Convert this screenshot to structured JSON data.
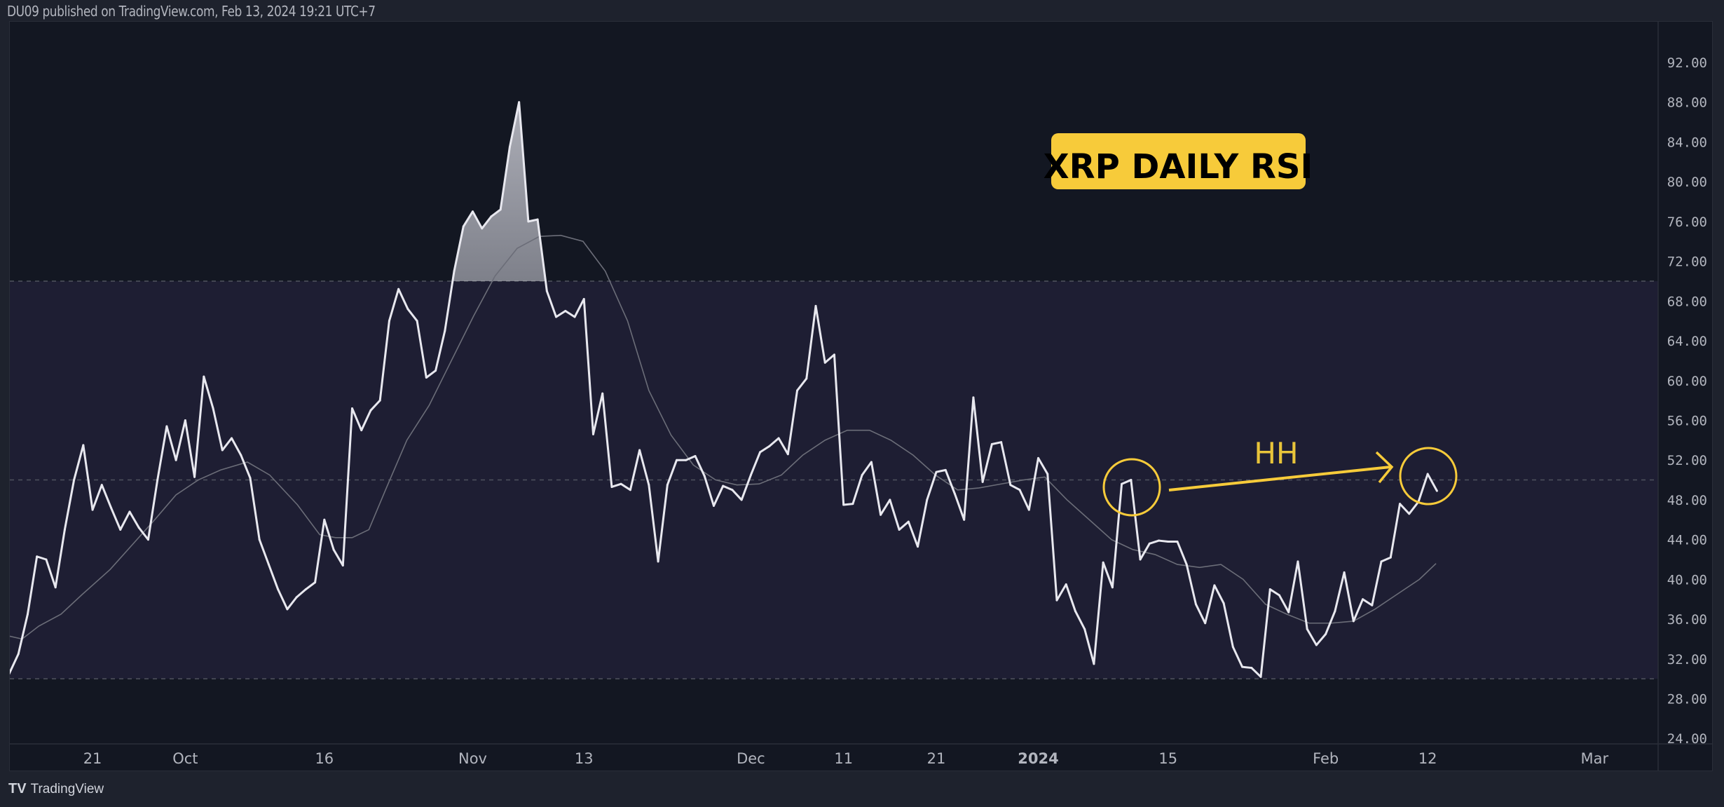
{
  "header": {
    "published": "DU09 published on TradingView.com, Feb 13, 2024 19:21 UTC+7"
  },
  "footer": {
    "logo_mark": "TV",
    "brand": "TradingView"
  },
  "colors": {
    "background": "#131722",
    "band": "#1e1e33",
    "rsi": "#e8e8ef",
    "ma": "#6b6d78",
    "annotation": "#f7cb3a",
    "grid_dash": "#50535e"
  },
  "chart_data": {
    "type": "line",
    "title": "XRP DAILY RSI",
    "start_date": "Sep 12, 2023",
    "x_unit": "day index",
    "ylim": [
      24,
      94
    ],
    "y_ticks": [
      "92.00",
      "88.00",
      "84.00",
      "80.00",
      "76.00",
      "72.00",
      "68.00",
      "64.00",
      "60.00",
      "56.00",
      "52.00",
      "48.00",
      "44.00",
      "40.00",
      "36.00",
      "32.00",
      "28.00",
      "24.00"
    ],
    "x_ticks": [
      {
        "label": "21",
        "day": 9
      },
      {
        "label": "Oct",
        "day": 19
      },
      {
        "label": "16",
        "day": 34
      },
      {
        "label": "Nov",
        "day": 50
      },
      {
        "label": "13",
        "day": 62
      },
      {
        "label": "Dec",
        "day": 80
      },
      {
        "label": "11",
        "day": 90
      },
      {
        "label": "21",
        "day": 100
      },
      {
        "label": "2024",
        "day": 111
      },
      {
        "label": "15",
        "day": 125
      },
      {
        "label": "Feb",
        "day": 142
      },
      {
        "label": "12",
        "day": 153
      },
      {
        "label": "Mar",
        "day": 171
      }
    ],
    "levels": {
      "upper": 70,
      "middle": 50,
      "lower": 30
    },
    "series": [
      {
        "name": "RSI",
        "values": [
          30.5,
          32.5,
          36.5,
          42.3,
          42.0,
          39.2,
          45,
          50,
          53.5,
          47,
          49.5,
          47.2,
          45,
          46.8,
          45.2,
          44,
          50,
          55.4,
          52,
          56,
          50.3,
          60.4,
          57.2,
          53,
          54.2,
          52.5,
          50.2,
          44,
          41.5,
          39,
          37,
          38.2,
          39,
          39.7,
          46,
          43,
          41.4,
          57.2,
          55,
          57,
          58,
          66,
          69.2,
          67.2,
          66,
          60.3,
          61,
          65,
          71,
          75.5,
          77,
          75.3,
          76.5,
          77.2,
          83.5,
          88,
          76,
          76.2,
          69,
          66.4,
          67,
          66.4,
          68.2,
          54.6,
          58.7,
          49.3,
          49.6,
          49,
          53,
          49.5,
          41.8,
          49.5,
          52,
          52,
          52.4,
          50.4,
          47.4,
          49.4,
          49,
          48,
          50.5,
          52.8,
          53.4,
          54.2,
          52.6,
          59,
          60.2,
          67.5,
          61.8,
          62.6,
          47.5,
          47.6,
          50.5,
          51.8,
          46.5,
          48,
          45,
          45.8,
          43.3,
          48,
          50.8,
          51,
          48.6,
          46,
          58.3,
          49.8,
          53.6,
          53.8,
          49.5,
          49,
          47,
          52.2,
          50.6,
          37.9,
          39.5,
          36.8,
          35,
          31.5,
          41.7,
          39.2,
          49.6,
          50,
          42,
          43.6,
          43.9,
          43.8,
          43.8,
          41.5,
          37.5,
          35.6,
          39.4,
          37.6,
          33.2,
          31.2,
          31.1,
          30.2,
          39,
          38.4,
          36.7,
          41.8,
          35,
          33.4,
          34.5,
          36.8,
          40.7,
          35.8,
          38,
          37.4,
          41.8,
          42.2,
          47.6,
          46.6,
          47.8,
          50.6,
          48.9
        ]
      },
      {
        "name": "RSI-based MA",
        "points": [
          [
            0,
            34.3
          ],
          [
            1.4,
            34
          ],
          [
            3.2,
            35.3
          ],
          [
            5.6,
            36.5
          ],
          [
            7.9,
            38.5
          ],
          [
            10.9,
            41
          ],
          [
            13.3,
            43.5
          ],
          [
            15.7,
            46
          ],
          [
            18,
            48.5
          ],
          [
            20.4,
            50
          ],
          [
            22.8,
            51
          ],
          [
            25.7,
            51.8
          ],
          [
            28.1,
            50.5
          ],
          [
            31.1,
            47.5
          ],
          [
            33.5,
            44.5
          ],
          [
            35.2,
            44.2
          ],
          [
            37,
            44.2
          ],
          [
            38.8,
            45
          ],
          [
            40.6,
            49
          ],
          [
            42.9,
            54
          ],
          [
            45.3,
            57.5
          ],
          [
            47.7,
            62
          ],
          [
            50.1,
            66.5
          ],
          [
            52.4,
            70.5
          ],
          [
            54.8,
            73.3
          ],
          [
            57.2,
            74.5
          ],
          [
            59.5,
            74.6
          ],
          [
            61.9,
            74
          ],
          [
            64.3,
            71
          ],
          [
            66.7,
            66
          ],
          [
            69,
            59
          ],
          [
            71.4,
            54.5
          ],
          [
            73.8,
            51.5
          ],
          [
            76.2,
            50
          ],
          [
            78.5,
            49.5
          ],
          [
            80.9,
            49.6
          ],
          [
            83.3,
            50.5
          ],
          [
            85.6,
            52.5
          ],
          [
            88,
            54
          ],
          [
            90.4,
            55
          ],
          [
            92.8,
            55
          ],
          [
            95.1,
            54
          ],
          [
            97.5,
            52.5
          ],
          [
            99.9,
            50.5
          ],
          [
            102.3,
            49
          ],
          [
            104.6,
            49.2
          ],
          [
            107,
            49.6
          ],
          [
            109.4,
            50
          ],
          [
            111.7,
            50.3
          ],
          [
            114.1,
            48
          ],
          [
            116.5,
            46
          ],
          [
            118.9,
            44
          ],
          [
            121.2,
            43
          ],
          [
            123.6,
            42.5
          ],
          [
            126,
            41.5
          ],
          [
            128.4,
            41.2
          ],
          [
            130.7,
            41.5
          ],
          [
            133.1,
            40
          ],
          [
            135.5,
            37.5
          ],
          [
            137.8,
            36.5
          ],
          [
            140.2,
            35.6
          ],
          [
            142.6,
            35.6
          ],
          [
            145,
            35.8
          ],
          [
            147.3,
            37
          ],
          [
            149.7,
            38.5
          ],
          [
            152.1,
            40
          ],
          [
            153.9,
            41.6
          ]
        ]
      }
    ],
    "annotations": {
      "label": "HH",
      "circled_days": [
        119,
        153
      ]
    }
  }
}
